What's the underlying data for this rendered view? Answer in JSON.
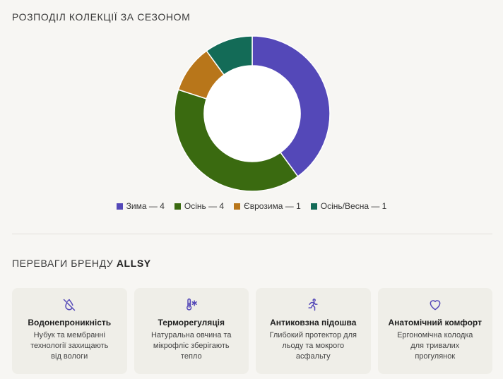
{
  "chart_title": "РОЗПОДІЛ КОЛЕКЦІЇ ЗА СЕЗОНОМ",
  "chart_data": {
    "type": "pie",
    "title": "РОЗПОДІЛ КОЛЕКЦІЇ ЗА СЕЗОНОМ",
    "donut": true,
    "categories": [
      "Зима",
      "Осінь",
      "Єврозима",
      "Осінь/Весна"
    ],
    "values": [
      4,
      4,
      1,
      1
    ],
    "colors": [
      "#5448b8",
      "#3a6a10",
      "#b8761a",
      "#136b57"
    ],
    "legend_labels": [
      "Зима — 4",
      "Осінь — 4",
      "Єврозима — 1",
      "Осінь/Весна — 1"
    ],
    "legend_position": "bottom"
  },
  "advantages": {
    "title_prefix": "ПЕРЕВАГИ БРЕНДУ ",
    "title_brand": "ALLSY",
    "accent_color": "#5448b8",
    "cards": [
      {
        "icon": "water-off-icon",
        "title": "Водонепроникність",
        "desc": "Нубук та мембранні технології захищають від вологи"
      },
      {
        "icon": "thermometer-snow-icon",
        "title": "Терморегуляція",
        "desc": "Натуральна овчина та мікрофліс зберігають тепло"
      },
      {
        "icon": "running-icon",
        "title": "Антиковзна підошва",
        "desc": "Глибокий протектор для льоду та мокрого асфальту"
      },
      {
        "icon": "heart-icon",
        "title": "Анатомічний комфорт",
        "desc": "Ергономічна колодка для тривалих прогулянок"
      }
    ]
  }
}
